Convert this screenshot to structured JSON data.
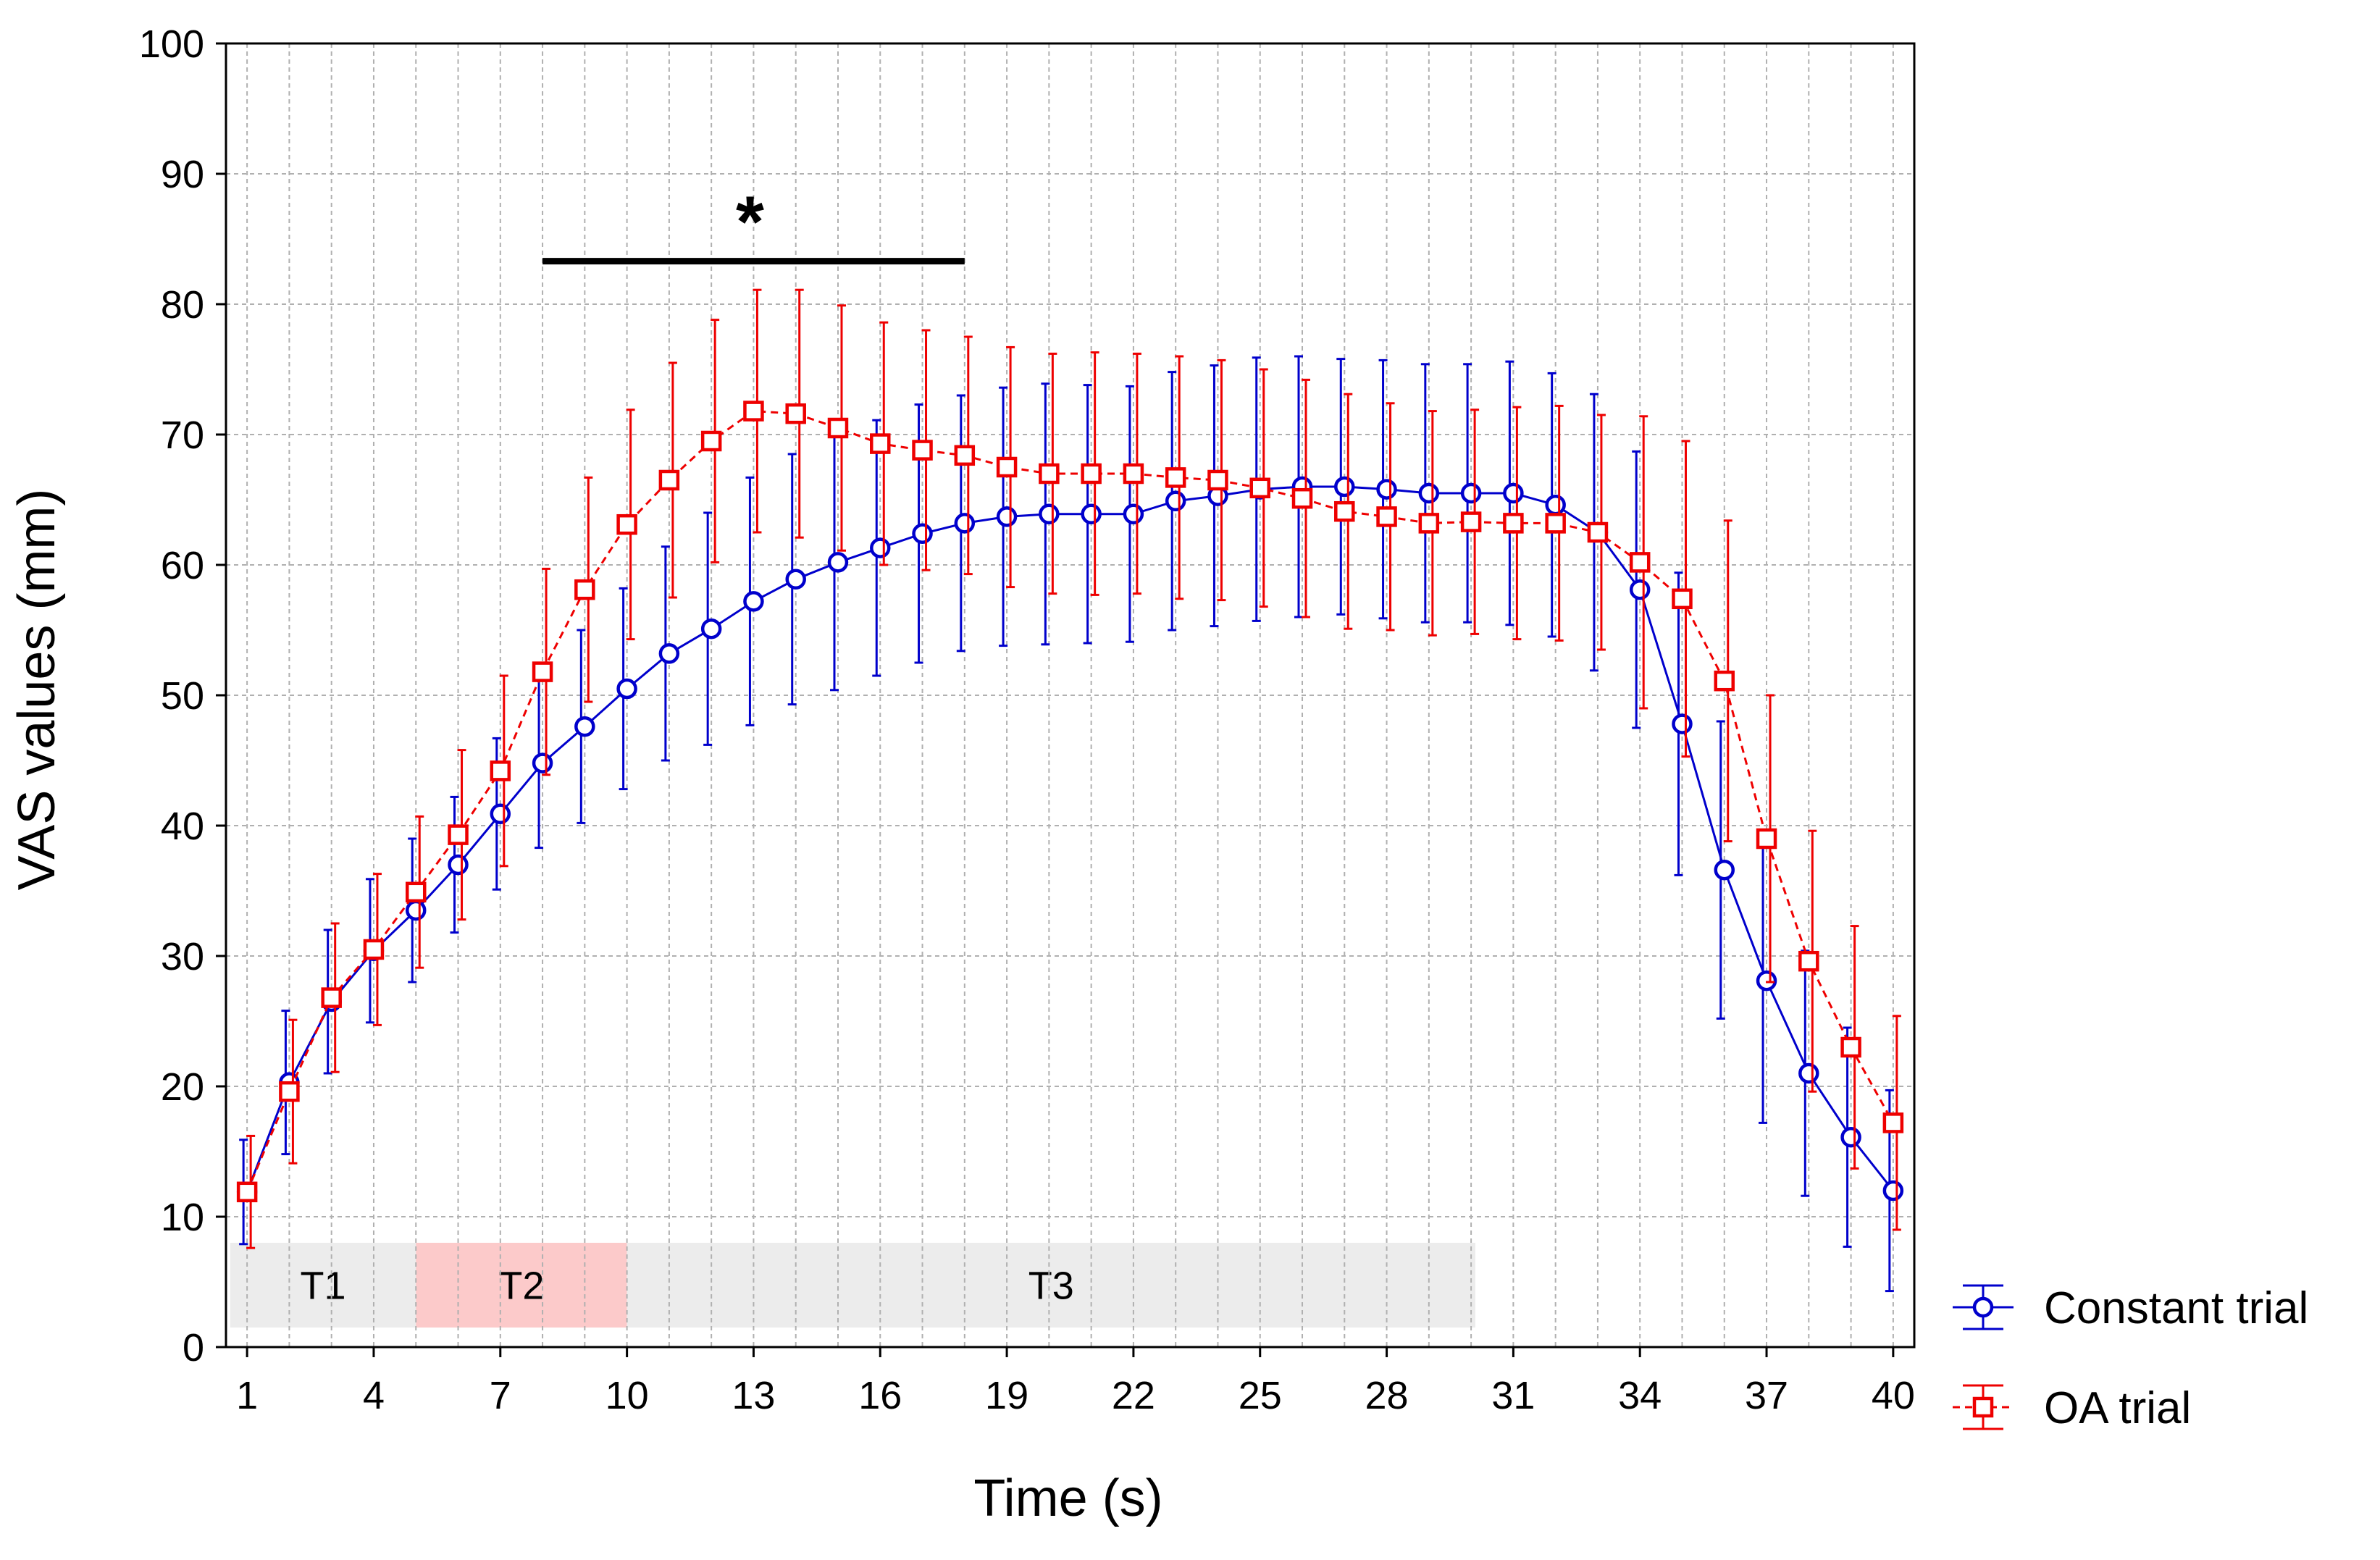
{
  "chart_data": {
    "type": "line",
    "title": "",
    "xlabel": "Time (s)",
    "ylabel": "VAS values (mm)",
    "xlim": [
      0.5,
      40.5
    ],
    "ylim": [
      0,
      100
    ],
    "x_ticks": [
      1,
      4,
      7,
      10,
      13,
      16,
      19,
      22,
      25,
      28,
      31,
      34,
      37,
      40
    ],
    "x_tick_labels": [
      "1",
      "4",
      "7",
      "10",
      "13",
      "16",
      "19",
      "22",
      "25",
      "28",
      "31",
      "34",
      "37",
      "40"
    ],
    "y_ticks": [
      0,
      10,
      20,
      30,
      40,
      50,
      60,
      70,
      80,
      90,
      100
    ],
    "y_tick_labels": [
      "0",
      "10",
      "20",
      "30",
      "40",
      "50",
      "60",
      "70",
      "80",
      "90",
      "100"
    ],
    "grid": true,
    "legend_position": "outside-bottom-right",
    "x": [
      1,
      2,
      3,
      4,
      5,
      6,
      7,
      8,
      9,
      10,
      11,
      12,
      13,
      14,
      15,
      16,
      17,
      18,
      19,
      20,
      21,
      22,
      23,
      24,
      25,
      26,
      27,
      28,
      29,
      30,
      31,
      32,
      33,
      34,
      35,
      36,
      37,
      38,
      39,
      40
    ],
    "series": [
      {
        "name": "Constant trial",
        "color": "#0000cc",
        "marker": "circle",
        "line_style": "solid",
        "values": [
          11.9,
          20.3,
          26.5,
          30.4,
          33.5,
          37.0,
          40.9,
          44.8,
          47.6,
          50.5,
          53.2,
          55.1,
          57.2,
          58.9,
          60.2,
          61.3,
          62.4,
          63.2,
          63.7,
          63.9,
          63.9,
          63.9,
          64.9,
          65.3,
          65.8,
          66.0,
          66.0,
          65.8,
          65.5,
          65.5,
          65.5,
          64.6,
          62.5,
          58.1,
          47.8,
          36.6,
          28.1,
          21.0,
          16.1,
          12.0
        ],
        "error": [
          4.0,
          5.5,
          5.5,
          5.5,
          5.5,
          5.2,
          5.8,
          6.5,
          7.4,
          7.7,
          8.2,
          8.9,
          9.5,
          9.6,
          9.8,
          9.8,
          9.9,
          9.8,
          9.9,
          10.0,
          9.9,
          9.8,
          9.9,
          10.0,
          10.1,
          10.0,
          9.8,
          9.9,
          9.9,
          9.9,
          10.1,
          10.1,
          10.6,
          10.6,
          11.6,
          11.4,
          10.9,
          9.4,
          8.4,
          7.7
        ]
      },
      {
        "name": "OA trial",
        "color": "#ee0000",
        "marker": "square",
        "line_style": "dashed",
        "values": [
          11.9,
          19.6,
          26.8,
          30.5,
          34.9,
          39.3,
          44.2,
          51.8,
          58.1,
          63.1,
          66.5,
          69.5,
          71.8,
          71.6,
          70.5,
          69.3,
          68.8,
          68.4,
          67.5,
          67.0,
          67.0,
          67.0,
          66.7,
          66.5,
          65.9,
          65.1,
          64.1,
          63.7,
          63.2,
          63.3,
          63.2,
          63.2,
          62.5,
          60.2,
          57.4,
          51.1,
          39.0,
          29.6,
          23.0,
          17.2
        ],
        "error": [
          4.3,
          5.5,
          5.7,
          5.8,
          5.8,
          6.5,
          7.3,
          7.9,
          8.6,
          8.8,
          9.0,
          9.3,
          9.3,
          9.5,
          9.4,
          9.3,
          9.2,
          9.1,
          9.2,
          9.2,
          9.3,
          9.2,
          9.3,
          9.2,
          9.1,
          9.1,
          9.0,
          8.7,
          8.6,
          8.6,
          8.9,
          9.0,
          9.0,
          11.2,
          12.1,
          12.3,
          11.0,
          10.0,
          9.3,
          8.2
        ]
      }
    ],
    "annotations": {
      "significance_symbol": "*",
      "significance_range": [
        8,
        18
      ],
      "significance_level": 83.3,
      "phases": [
        {
          "label": "T1",
          "x_start": 0.6,
          "x_end": 5.0,
          "y_start": 1.5,
          "y_end": 8.0,
          "color": "#ececec"
        },
        {
          "label": "T2",
          "x_start": 5.0,
          "x_end": 10.0,
          "y_start": 1.5,
          "y_end": 8.0,
          "color": "#fccaca"
        },
        {
          "label": "T3",
          "x_start": 10.0,
          "x_end": 30.1,
          "y_start": 1.5,
          "y_end": 8.0,
          "color": "#ececec"
        }
      ]
    }
  }
}
